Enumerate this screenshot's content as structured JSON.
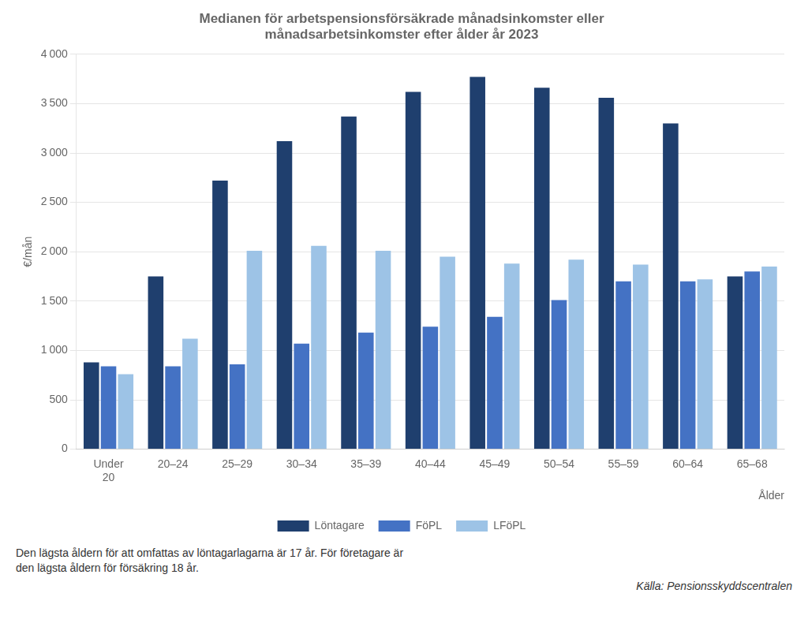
{
  "chart_data": {
    "type": "bar",
    "title": "Medianen för arbetspensionsförsäkrade månadsinkomster eller\nmånadsarbetsinkomster efter ålder år 2023",
    "ylabel": "€/mån",
    "xlabel": "Ålder",
    "categories": [
      "Under\n20",
      "20–24",
      "25–29",
      "30–34",
      "35–39",
      "40–44",
      "45–49",
      "50–54",
      "55–59",
      "60–64",
      "65–68"
    ],
    "series": [
      {
        "name": "Löntagare",
        "color": "#1F3F6E",
        "values": [
          880,
          1750,
          2720,
          3120,
          3370,
          3620,
          3770,
          3660,
          3560,
          3300,
          1750
        ]
      },
      {
        "name": "FöPL",
        "color": "#4472C4",
        "values": [
          840,
          840,
          860,
          1070,
          1180,
          1240,
          1340,
          1510,
          1700,
          1700,
          1800
        ]
      },
      {
        "name": "LFöPL",
        "color": "#9DC3E6",
        "values": [
          760,
          1120,
          2010,
          2060,
          2010,
          1950,
          1880,
          1920,
          1870,
          1720,
          1850
        ]
      }
    ],
    "ylim": [
      0,
      4000
    ],
    "yticks": [
      0,
      500,
      {
        "value": 1000,
        "label": "1 000"
      },
      {
        "value": 1500,
        "label": "1 500"
      },
      {
        "value": 2000,
        "label": "2 000"
      },
      {
        "value": 2500,
        "label": "2 500"
      },
      {
        "value": 3000,
        "label": "3 000"
      },
      {
        "value": 3500,
        "label": "3 500"
      },
      {
        "value": 4000,
        "label": "4 000"
      }
    ],
    "grid": true,
    "legend": "bottom",
    "annotations": [
      "Den lägsta åldern för att omfattas av löntagarlagarna är 17 år. För företagare är\nden lägsta åldern för försäkring 18 år.",
      "Källa: Pensionsskyddscentralen"
    ]
  }
}
